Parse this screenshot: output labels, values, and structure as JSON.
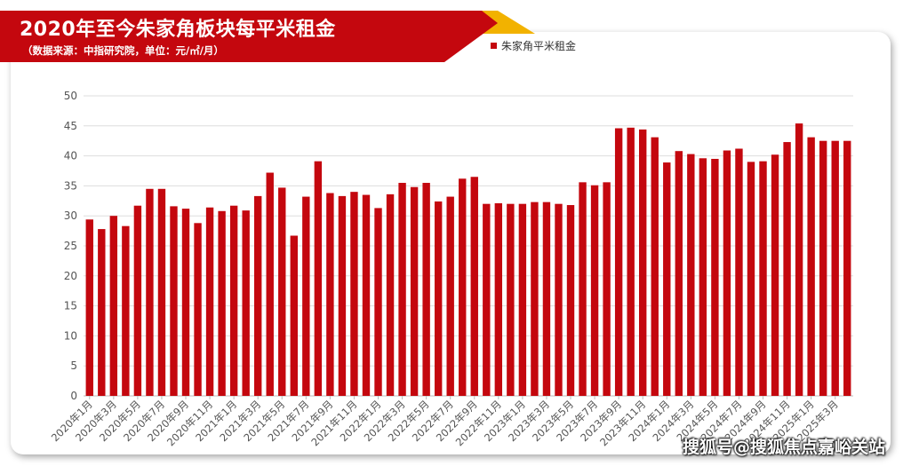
{
  "header": {
    "title": "2020年至今朱家角板块每平米租金",
    "subtitle": "（数据来源：中指研究院，单位：元/㎡/月）"
  },
  "watermark": "搜狐号@搜狐焦点嘉峪关站",
  "colors": {
    "bar": "#c4070e",
    "banner_red": "#c4070e",
    "banner_gold": "#f2b200"
  },
  "chart_data": {
    "type": "bar",
    "series": [
      {
        "name": "朱家角平米租金",
        "values": [
          29.4,
          27.8,
          30.0,
          28.3,
          31.7,
          34.5,
          34.5,
          31.6,
          31.2,
          28.8,
          31.4,
          30.8,
          31.7,
          30.9,
          33.3,
          37.2,
          34.7,
          26.7,
          33.2,
          39.1,
          33.8,
          33.3,
          34.0,
          33.5,
          31.3,
          33.6,
          35.5,
          34.8,
          35.5,
          32.4,
          33.2,
          36.2,
          36.5,
          32.0,
          32.1,
          32.0,
          32.0,
          32.3,
          32.3,
          32.0,
          31.8,
          35.6,
          35.1,
          35.6,
          44.6,
          44.7,
          44.4,
          43.1,
          38.9,
          40.8,
          40.3,
          39.6,
          39.5,
          40.9,
          41.2,
          39.0,
          39.1,
          40.2,
          42.3,
          45.4,
          43.1,
          42.5,
          42.5,
          42.5
        ]
      }
    ],
    "x_tick_labels": [
      "2020年1月",
      "2020年3月",
      "2020年5月",
      "2020年7月",
      "2020年9月",
      "2020年11月",
      "2021年1月",
      "2021年3月",
      "2021年5月",
      "2021年7月",
      "2021年9月",
      "2021年11月",
      "2022年1月",
      "2022年3月",
      "2022年5月",
      "2022年7月",
      "2022年9月",
      "2022年11月",
      "2023年1月",
      "2023年3月",
      "2023年5月",
      "2023年7月",
      "2023年9月",
      "2023年11月",
      "2024年1月",
      "2024年3月",
      "2024年5月",
      "2024年7月",
      "2024年9月",
      "2024年11月",
      "2025年1月",
      "2025年3月"
    ],
    "y_ticks": [
      0,
      5,
      10,
      15,
      20,
      25,
      30,
      35,
      40,
      45,
      50
    ],
    "ylim": [
      0,
      50
    ],
    "grid": true,
    "legend_position": "top"
  }
}
